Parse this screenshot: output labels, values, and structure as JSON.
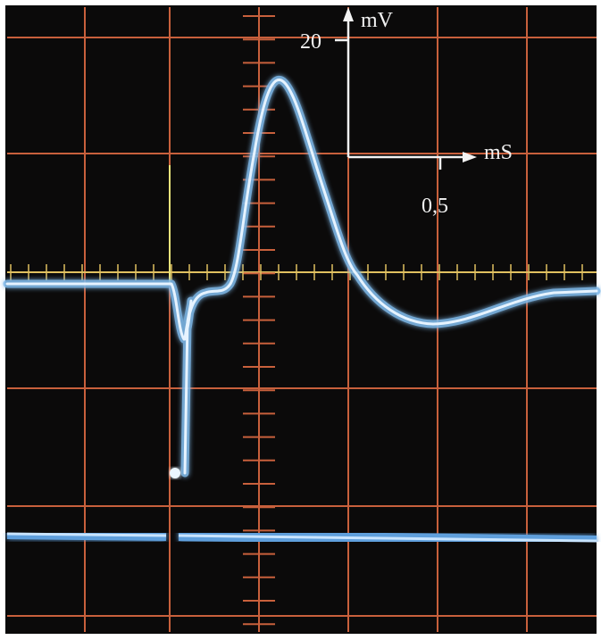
{
  "scale": {
    "y_value": "20",
    "y_unit": "mV",
    "x_unit": "mS",
    "x_value": "0,5"
  }
}
